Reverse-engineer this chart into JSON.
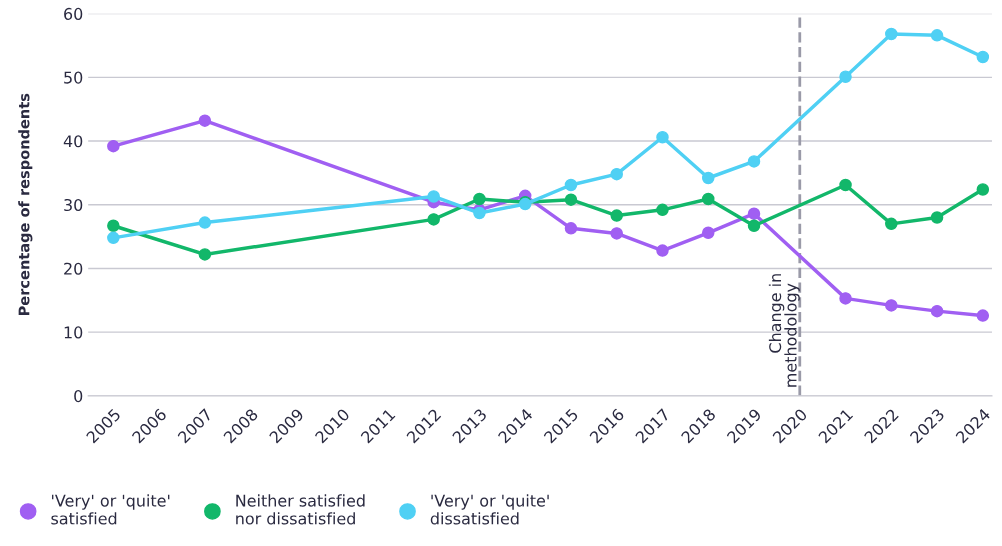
{
  "chart_data": {
    "type": "line",
    "ylabel": "Percentage of respondents",
    "x": [
      2005,
      2007,
      2012,
      2013,
      2014,
      2015,
      2016,
      2017,
      2018,
      2019,
      2021,
      2022,
      2023,
      2024
    ],
    "series": [
      {
        "name": "'Very' or 'quite'\nsatisfied",
        "color": "#a05ff2",
        "values": [
          39.2,
          43.2,
          30.4,
          29.2,
          31.4,
          26.3,
          25.5,
          22.8,
          25.6,
          28.6,
          15.3,
          14.2,
          13.3,
          12.6
        ]
      },
      {
        "name": "Neither satisfied\nnor dissatisfied",
        "color": "#12b76a",
        "values": [
          26.7,
          22.2,
          27.7,
          30.9,
          30.4,
          30.8,
          28.3,
          29.2,
          30.9,
          26.7,
          33.1,
          27.0,
          28.0,
          32.4
        ]
      },
      {
        "name": "'Very' or 'quite'\ndissatisfied",
        "color": "#4fd0f4",
        "values": [
          24.8,
          27.2,
          31.3,
          28.7,
          30.1,
          33.1,
          34.8,
          40.6,
          34.2,
          36.8,
          50.1,
          56.8,
          56.6,
          53.2
        ]
      }
    ],
    "xlim": [
      2004.45,
      2024.2
    ],
    "xticks": [
      2005,
      2006,
      2007,
      2008,
      2009,
      2010,
      2011,
      2012,
      2013,
      2014,
      2015,
      2016,
      2017,
      2018,
      2019,
      2020,
      2021,
      2022,
      2023,
      2024
    ],
    "ylim": [
      0,
      60
    ],
    "yticks": [
      0,
      10,
      20,
      30,
      40,
      50,
      60
    ],
    "ref_lines": [
      {
        "axis": "x",
        "value": 2020,
        "label": "Change in\nmethodology",
        "color": "#9a9aa8",
        "line_style": "dashed"
      }
    ],
    "grid": "y",
    "legend": "bottom",
    "marker": "circle",
    "line_style": "solid"
  }
}
